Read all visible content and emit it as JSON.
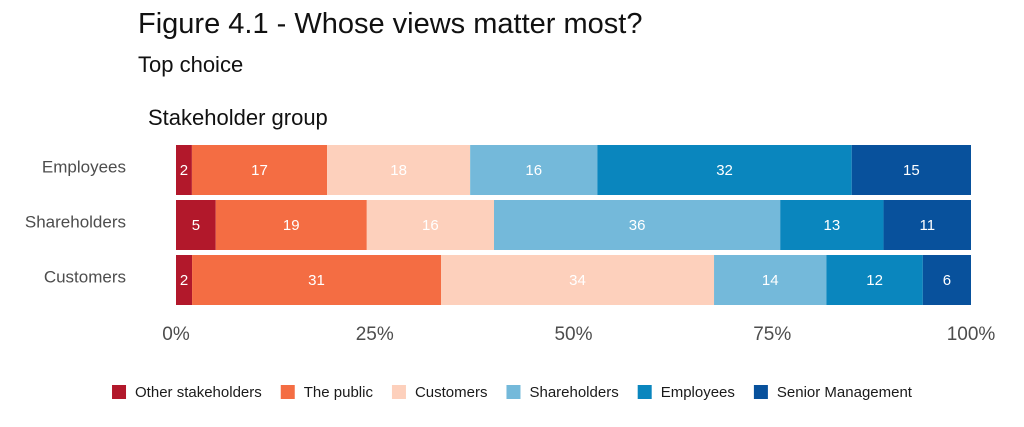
{
  "chart_data": {
    "type": "bar",
    "orientation": "horizontal",
    "stacked": true,
    "title": "Figure 4.1 - Whose views matter most?",
    "subtitle": "Top choice",
    "ylabel": "Stakeholder group",
    "xlabel": "",
    "categories": [
      "Employees",
      "Shareholders",
      "Customers"
    ],
    "xlim": [
      0,
      100
    ],
    "x_ticks": [
      "0%",
      "25%",
      "50%",
      "75%",
      "100%"
    ],
    "x_tick_values": [
      0,
      25,
      50,
      75,
      100
    ],
    "legend_position": "bottom",
    "grid": false,
    "series": [
      {
        "name": "Other stakeholders",
        "color": "#b2182b",
        "label_color": "#ffffff",
        "values": [
          2,
          5,
          2
        ]
      },
      {
        "name": "The public",
        "color": "#f46d43",
        "label_color": "#ffffff",
        "values": [
          17,
          19,
          31
        ]
      },
      {
        "name": "Customers",
        "color": "#fdd0bc",
        "label_color": "#ffffff",
        "values": [
          18,
          16,
          34
        ]
      },
      {
        "name": "Shareholders",
        "color": "#74b9da",
        "label_color": "#ffffff",
        "values": [
          16,
          36,
          14
        ]
      },
      {
        "name": "Employees",
        "color": "#0a86be",
        "label_color": "#ffffff",
        "values": [
          32,
          13,
          12
        ]
      },
      {
        "name": "Senior Management",
        "color": "#08519c",
        "label_color": "#ffffff",
        "values": [
          15,
          11,
          6
        ]
      }
    ]
  }
}
